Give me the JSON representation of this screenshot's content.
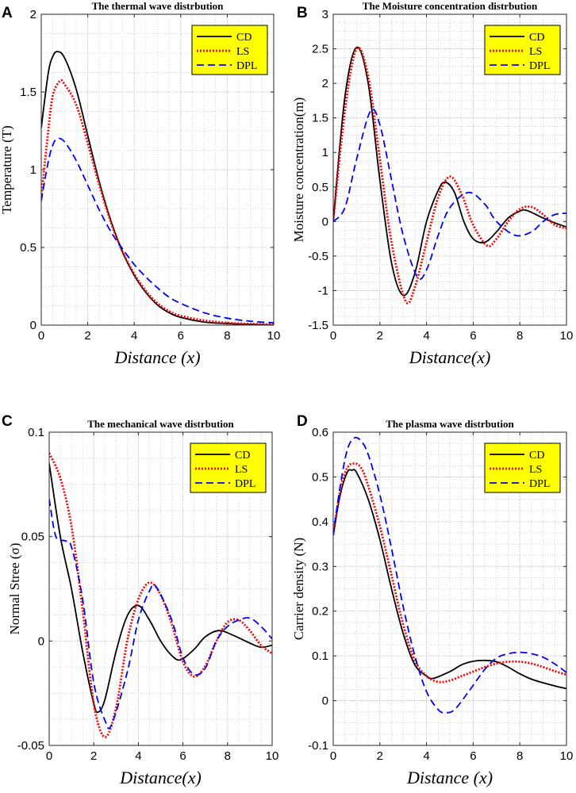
{
  "chart_data": [
    {
      "type": "line",
      "panel": "A",
      "title": "The thermal wave distrbution",
      "xlabel": "Distance (x)",
      "ylabel": "Temperature (T)",
      "xlim": [
        0,
        10
      ],
      "ylim": [
        0,
        2
      ],
      "xticks": [
        0,
        2,
        4,
        6,
        8,
        10
      ],
      "yticks": [
        0,
        0.5,
        1,
        1.5,
        2
      ],
      "ytick_labels": [
        "0",
        "0.5",
        "1",
        "1.5",
        "2"
      ],
      "legend_position": "top-right",
      "grid": true,
      "series": [
        {
          "name": "CD",
          "style": "solid",
          "color": "#000000",
          "x": [
            0,
            0.3,
            0.5,
            0.7,
            1,
            1.5,
            2,
            2.5,
            3,
            3.5,
            4,
            4.5,
            5,
            5.5,
            6,
            7,
            8,
            9,
            10
          ],
          "y": [
            1.27,
            1.62,
            1.73,
            1.76,
            1.72,
            1.52,
            1.22,
            0.92,
            0.67,
            0.47,
            0.32,
            0.21,
            0.13,
            0.08,
            0.05,
            0.02,
            0.01,
            0.005,
            0.0
          ]
        },
        {
          "name": "LS",
          "style": "dotted",
          "color": "#ff0000",
          "x": [
            0,
            0.3,
            0.5,
            0.8,
            1,
            1.5,
            2,
            2.5,
            3,
            3.5,
            4,
            4.5,
            5,
            5.5,
            6,
            7,
            8,
            9,
            10
          ],
          "y": [
            0.82,
            1.25,
            1.48,
            1.57,
            1.55,
            1.42,
            1.17,
            0.9,
            0.66,
            0.47,
            0.33,
            0.22,
            0.14,
            0.09,
            0.06,
            0.03,
            0.015,
            0.008,
            0.005
          ]
        },
        {
          "name": "DPL",
          "style": "dashed",
          "color": "#0000ff",
          "x": [
            0,
            0.3,
            0.5,
            0.7,
            1,
            1.5,
            2,
            2.5,
            3,
            3.5,
            4,
            4.5,
            5,
            5.5,
            6,
            7,
            8,
            9,
            10
          ],
          "y": [
            0.8,
            1.05,
            1.16,
            1.2,
            1.18,
            1.06,
            0.9,
            0.74,
            0.6,
            0.49,
            0.39,
            0.31,
            0.24,
            0.18,
            0.14,
            0.08,
            0.045,
            0.025,
            0.015
          ]
        }
      ]
    },
    {
      "type": "line",
      "panel": "B",
      "title": "The Moisture concentration distrbution",
      "xlabel": "Distance(x)",
      "ylabel": "Moisture concentration(m)",
      "xlim": [
        0,
        10
      ],
      "ylim": [
        -1.5,
        3
      ],
      "xticks": [
        0,
        2,
        4,
        6,
        8,
        10
      ],
      "yticks": [
        -1.5,
        -1,
        -0.5,
        0,
        0.5,
        1,
        1.5,
        2,
        2.5,
        3
      ],
      "ytick_labels": [
        "-1.5",
        "-1",
        "-0.5",
        "0",
        "0.5",
        "1",
        "1.5",
        "2",
        "2.5",
        "3"
      ],
      "legend_position": "top-right",
      "grid": true,
      "series": [
        {
          "name": "CD",
          "style": "solid",
          "color": "#000000",
          "x": [
            0,
            0.5,
            1,
            1.5,
            2,
            2.5,
            3,
            3.5,
            4,
            4.5,
            4.8,
            5.2,
            5.6,
            6,
            6.5,
            7,
            7.5,
            8,
            8.3,
            9,
            9.5,
            10
          ],
          "y": [
            0.0,
            1.8,
            2.52,
            2.0,
            0.6,
            -0.6,
            -1.07,
            -0.75,
            0.0,
            0.45,
            0.57,
            0.42,
            0.0,
            -0.25,
            -0.3,
            -0.15,
            0.05,
            0.15,
            0.16,
            0.05,
            -0.02,
            -0.08
          ]
        },
        {
          "name": "LS",
          "style": "dotted",
          "color": "#ff0000",
          "x": [
            0,
            0.5,
            1,
            1.5,
            2,
            2.5,
            3.1,
            3.5,
            4,
            4.5,
            5,
            5.5,
            6,
            6.6,
            7,
            7.5,
            8,
            8.5,
            9,
            9.5,
            10
          ],
          "y": [
            0.0,
            1.6,
            2.5,
            2.1,
            0.9,
            -0.3,
            -1.15,
            -0.95,
            -0.3,
            0.35,
            0.65,
            0.4,
            -0.05,
            -0.35,
            -0.25,
            0.0,
            0.18,
            0.21,
            0.1,
            -0.05,
            -0.1
          ]
        },
        {
          "name": "DPL",
          "style": "dashed",
          "color": "#0000ff",
          "x": [
            0,
            0.5,
            1,
            1.6,
            2,
            2.5,
            3,
            3.6,
            4,
            4.5,
            5,
            5.8,
            6.5,
            7,
            7.8,
            8.5,
            9,
            9.5,
            10
          ],
          "y": [
            0.0,
            0.2,
            0.9,
            1.6,
            1.4,
            0.6,
            -0.2,
            -0.8,
            -0.7,
            -0.2,
            0.2,
            0.42,
            0.25,
            0.0,
            -0.2,
            -0.15,
            0.0,
            0.1,
            0.12
          ]
        }
      ]
    },
    {
      "type": "line",
      "panel": "C",
      "title": "The mechanical wave distrbution",
      "xlabel": "Distance(x)",
      "ylabel": "Normal Stree (σ)",
      "xlim": [
        0,
        10
      ],
      "ylim": [
        -0.05,
        0.1
      ],
      "xticks": [
        0,
        2,
        4,
        6,
        8,
        10
      ],
      "yticks": [
        -0.05,
        0,
        0.05,
        0.1
      ],
      "ytick_labels": [
        "-0.05",
        "0",
        "0.05",
        "0.1"
      ],
      "legend_position": "top-right",
      "grid": true,
      "series": [
        {
          "name": "CD",
          "style": "solid",
          "color": "#000000",
          "x": [
            0,
            0.5,
            1,
            1.5,
            2,
            2.2,
            2.5,
            3,
            3.5,
            4,
            4.5,
            5,
            5.5,
            5.9,
            6.5,
            7,
            7.6,
            8.2,
            9,
            9.5,
            10
          ],
          "y": [
            0.085,
            0.05,
            0.025,
            -0.005,
            -0.03,
            -0.034,
            -0.028,
            -0.005,
            0.012,
            0.017,
            0.01,
            0.0,
            -0.007,
            -0.009,
            -0.004,
            0.002,
            0.005,
            0.003,
            -0.001,
            -0.003,
            -0.002
          ]
        },
        {
          "name": "LS",
          "style": "dotted",
          "color": "#ff0000",
          "x": [
            0,
            0.5,
            1,
            1.5,
            2,
            2.5,
            3,
            3.5,
            4,
            4.5,
            5,
            5.5,
            6,
            6.5,
            7,
            7.5,
            8,
            8.5,
            9,
            9.5,
            10
          ],
          "y": [
            0.09,
            0.078,
            0.055,
            0.015,
            -0.03,
            -0.046,
            -0.032,
            0.0,
            0.02,
            0.028,
            0.022,
            0.008,
            -0.01,
            -0.017,
            -0.012,
            0.0,
            0.009,
            0.01,
            0.005,
            -0.002,
            -0.006
          ]
        },
        {
          "name": "DPL",
          "style": "dashed",
          "color": "#0000ff",
          "x": [
            0,
            0.3,
            0.7,
            1,
            1.5,
            2,
            2.5,
            2.8,
            3.5,
            4,
            4.5,
            4.8,
            5.5,
            6,
            6.5,
            7,
            7.5,
            8,
            8.5,
            9,
            9.5,
            10
          ],
          "y": [
            0.068,
            0.05,
            0.048,
            0.045,
            0.02,
            -0.02,
            -0.038,
            -0.04,
            -0.015,
            0.01,
            0.024,
            0.026,
            0.01,
            -0.008,
            -0.016,
            -0.013,
            0.0,
            0.007,
            0.01,
            0.011,
            0.007,
            0.001
          ]
        }
      ]
    },
    {
      "type": "line",
      "panel": "D",
      "title": "The plasma wave distrbution",
      "xlabel": "Distance (x)",
      "ylabel": "Carrier density (N)",
      "xlim": [
        0,
        10
      ],
      "ylim": [
        -0.1,
        0.6
      ],
      "xticks": [
        0,
        2,
        4,
        6,
        8,
        10
      ],
      "yticks": [
        -0.1,
        0,
        0.1,
        0.2,
        0.3,
        0.4,
        0.5,
        0.6
      ],
      "ytick_labels": [
        "-0.1",
        "0",
        "0.1",
        "0.2",
        "0.3",
        "0.4",
        "0.5",
        "0.6"
      ],
      "legend_position": "top-right",
      "grid": true,
      "series": [
        {
          "name": "CD",
          "style": "solid",
          "color": "#000000",
          "x": [
            0,
            0.3,
            0.6,
            0.8,
            1,
            1.5,
            2,
            2.5,
            3,
            3.5,
            4,
            4.3,
            5,
            5.5,
            6,
            6.5,
            7,
            7.5,
            8,
            8.5,
            9,
            9.5,
            10
          ],
          "y": [
            0.37,
            0.46,
            0.51,
            0.515,
            0.51,
            0.45,
            0.36,
            0.25,
            0.15,
            0.08,
            0.055,
            0.05,
            0.065,
            0.08,
            0.088,
            0.09,
            0.087,
            0.075,
            0.06,
            0.048,
            0.04,
            0.033,
            0.027
          ]
        },
        {
          "name": "LS",
          "style": "dotted",
          "color": "#ff0000",
          "x": [
            0,
            0.3,
            0.6,
            0.9,
            1.2,
            1.5,
            2,
            2.5,
            3,
            3.5,
            4,
            4.5,
            5,
            5.5,
            6,
            6.5,
            7,
            7.5,
            8,
            8.5,
            9,
            9.5,
            10
          ],
          "y": [
            0.37,
            0.47,
            0.52,
            0.53,
            0.52,
            0.48,
            0.39,
            0.28,
            0.17,
            0.09,
            0.055,
            0.042,
            0.045,
            0.055,
            0.065,
            0.075,
            0.083,
            0.087,
            0.087,
            0.083,
            0.075,
            0.066,
            0.058
          ]
        },
        {
          "name": "DPL",
          "style": "dashed",
          "color": "#0000ff",
          "x": [
            0,
            0.3,
            0.6,
            0.9,
            1.2,
            1.5,
            2,
            2.5,
            3,
            3.5,
            4,
            4.5,
            4.8,
            5.2,
            5.8,
            6.5,
            7,
            7.5,
            8,
            8.5,
            9,
            9.5,
            10
          ],
          "y": [
            0.37,
            0.48,
            0.56,
            0.587,
            0.58,
            0.55,
            0.46,
            0.34,
            0.21,
            0.1,
            0.02,
            -0.02,
            -0.027,
            -0.02,
            0.02,
            0.07,
            0.095,
            0.105,
            0.108,
            0.105,
            0.097,
            0.082,
            0.063
          ]
        }
      ]
    }
  ]
}
